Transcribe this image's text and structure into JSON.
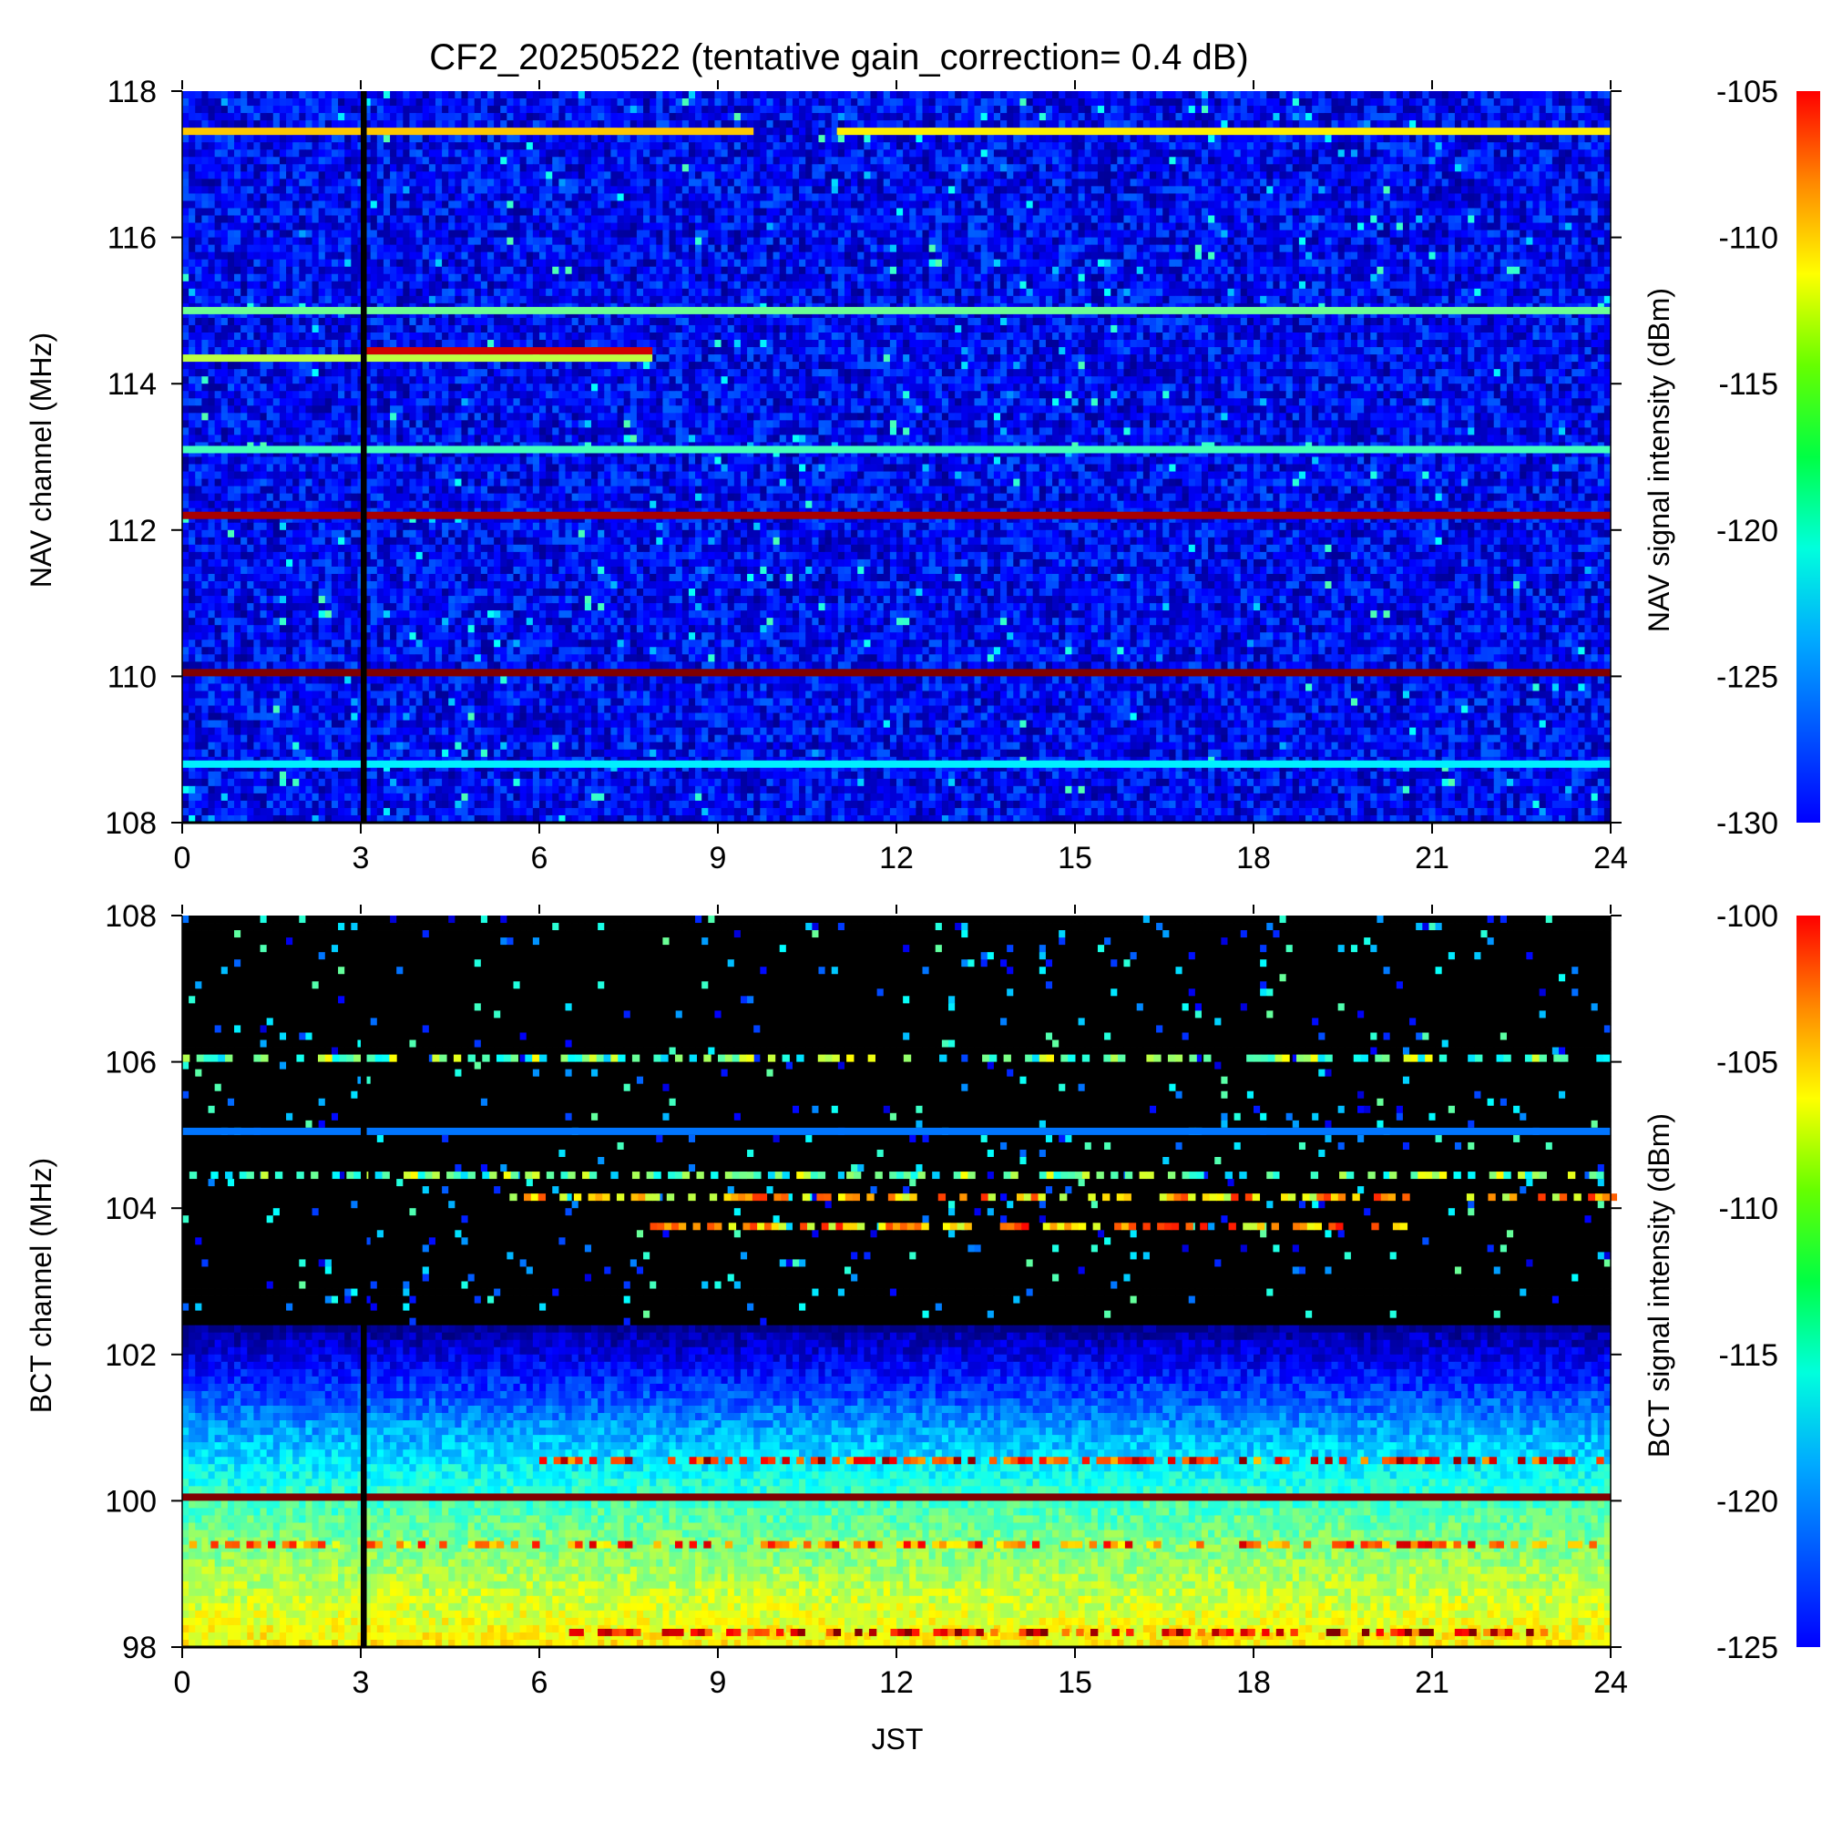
{
  "chart_data": [
    {
      "type": "heatmap",
      "title": "CF2_20250522 (tentative gain_correction=  0.4 dB)",
      "xlabel": "",
      "ylabel": "NAV channel (MHz)",
      "colorbar_label": "NAV signal intensity (dBm)",
      "xlim": [
        0,
        24
      ],
      "ylim": [
        108,
        118
      ],
      "xticks": [
        0,
        3,
        6,
        9,
        12,
        15,
        18,
        21,
        24
      ],
      "xtick_labels": [
        "0",
        "3",
        "6",
        "9",
        "12",
        "15",
        "18",
        "21",
        "24"
      ],
      "yticks": [
        108,
        110,
        112,
        114,
        116,
        118
      ],
      "ytick_labels": [
        "108",
        "110",
        "112",
        "114",
        "116",
        "118"
      ],
      "colorbar_range": [
        -130,
        -105
      ],
      "colorbar_ticks": [
        -105,
        -110,
        -115,
        -120,
        -125,
        -130
      ],
      "colorbar_tick_labels": [
        "-105",
        "-110",
        "-115",
        "-120",
        "-125",
        "-130"
      ],
      "colormap": "jet",
      "background_level_dbm": -127,
      "data_gap": {
        "x": [
          3.0,
          3.1
        ],
        "note": "black vertical band (no data)"
      },
      "bright_channels": [
        {
          "mhz": 117.45,
          "level_dbm": -113,
          "from": 0,
          "to": 9.6
        },
        {
          "mhz": 117.45,
          "level_dbm": -114,
          "from": 11.0,
          "to": 24
        },
        {
          "mhz": 115.0,
          "level_dbm": -118,
          "from": 0,
          "to": 24
        },
        {
          "mhz": 114.45,
          "level_dbm": -107,
          "from": 3.1,
          "to": 7.9
        },
        {
          "mhz": 114.35,
          "level_dbm": -116,
          "from": 0,
          "to": 7.9
        },
        {
          "mhz": 113.1,
          "level_dbm": -119,
          "from": 0,
          "to": 24
        },
        {
          "mhz": 112.2,
          "level_dbm": -106,
          "from": 0,
          "to": 24
        },
        {
          "mhz": 110.05,
          "level_dbm": -105,
          "from": 0,
          "to": 24
        },
        {
          "mhz": 108.8,
          "level_dbm": -121,
          "from": 0,
          "to": 24
        }
      ]
    },
    {
      "type": "heatmap",
      "title": "",
      "xlabel": "JST",
      "ylabel": "BCT channel (MHz)",
      "colorbar_label": "BCT signal intensity (dBm)",
      "xlim": [
        0,
        24
      ],
      "ylim": [
        98,
        108
      ],
      "xticks": [
        0,
        3,
        6,
        9,
        12,
        15,
        18,
        21,
        24
      ],
      "xtick_labels": [
        "0",
        "3",
        "6",
        "9",
        "12",
        "15",
        "18",
        "21",
        "24"
      ],
      "yticks": [
        98,
        100,
        102,
        104,
        106,
        108
      ],
      "ytick_labels": [
        "98",
        "100",
        "102",
        "104",
        "106",
        "108"
      ],
      "colorbar_range": [
        -125,
        -100
      ],
      "colorbar_ticks": [
        -100,
        -105,
        -110,
        -115,
        -120,
        -125
      ],
      "colorbar_tick_labels": [
        "-100",
        "-105",
        "-110",
        "-115",
        "-120",
        "-125"
      ],
      "colormap": "jet",
      "below_range_color": "black",
      "data_gap": {
        "x": [
          3.0,
          3.1
        ],
        "note": "black vertical band (no data)"
      },
      "background_gradient": [
        {
          "mhz": 98.0,
          "level_dbm": -109
        },
        {
          "mhz": 100.0,
          "level_dbm": -114
        },
        {
          "mhz": 101.0,
          "level_dbm": -118
        },
        {
          "mhz": 102.3,
          "level_dbm": -124
        },
        {
          "mhz": 102.4,
          "level_dbm": -126
        }
      ],
      "bright_channels": [
        {
          "mhz": 106.05,
          "level_dbm": -113,
          "from": 0,
          "to": 24,
          "sparse": true
        },
        {
          "mhz": 105.05,
          "level_dbm": -119,
          "from": 0,
          "to": 24
        },
        {
          "mhz": 104.45,
          "level_dbm": -113,
          "from": 0,
          "to": 24,
          "sparse": true
        },
        {
          "mhz": 104.15,
          "level_dbm": -108,
          "from": 5.5,
          "to": 24,
          "sparse": true
        },
        {
          "mhz": 103.75,
          "level_dbm": -107,
          "from": 7.5,
          "to": 20.5,
          "sparse": true
        },
        {
          "mhz": 100.05,
          "level_dbm": -100,
          "from": 0,
          "to": 24
        },
        {
          "mhz": 100.55,
          "level_dbm": -104,
          "from": 6.0,
          "to": 24,
          "sparse": true
        },
        {
          "mhz": 99.4,
          "level_dbm": -106,
          "from": 0,
          "to": 24,
          "sparse": true
        },
        {
          "mhz": 98.2,
          "level_dbm": -103,
          "from": 6.5,
          "to": 23,
          "sparse": true
        }
      ]
    }
  ]
}
